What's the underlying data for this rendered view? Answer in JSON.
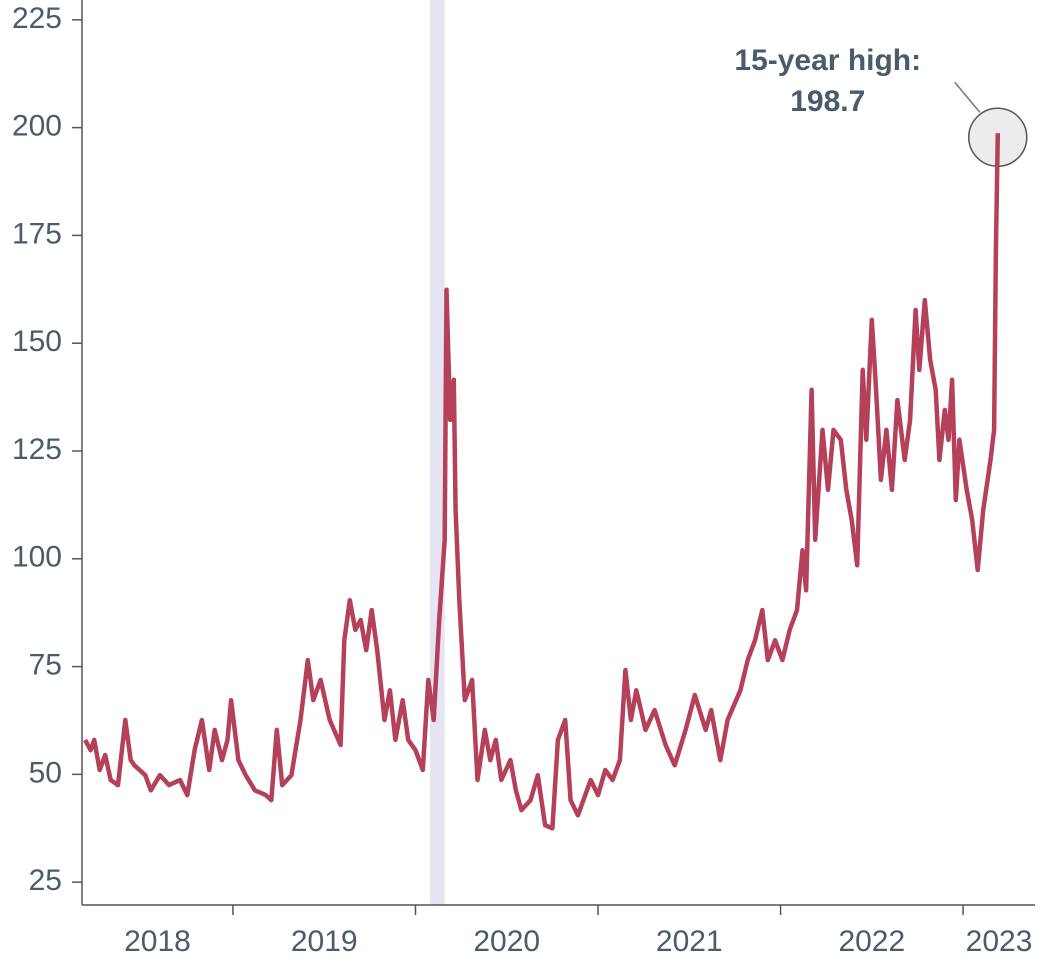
{
  "chart_data": {
    "type": "line",
    "annotation": {
      "label": "15-year high:",
      "value": 198.7,
      "x": 2023.19
    },
    "x": [
      2018.19,
      2018.22,
      2018.24,
      2018.27,
      2018.3,
      2018.33,
      2018.37,
      2018.41,
      2018.44,
      2018.46,
      2018.52,
      2018.55,
      2018.6,
      2018.65,
      2018.71,
      2018.75,
      2018.79,
      2018.83,
      2018.87,
      2018.9,
      2018.94,
      2018.97,
      2018.99,
      2019.03,
      2019.07,
      2019.12,
      2019.18,
      2019.21,
      2019.24,
      2019.27,
      2019.32,
      2019.37,
      2019.41,
      2019.44,
      2019.48,
      2019.53,
      2019.59,
      2019.61,
      2019.64,
      2019.67,
      2019.7,
      2019.73,
      2019.76,
      2019.79,
      2019.83,
      2019.86,
      2019.89,
      2019.93,
      2019.96,
      2020.0,
      2020.04,
      2020.07,
      2020.1,
      2020.13,
      2020.16,
      2020.17,
      2020.19,
      2020.21,
      2020.22,
      2020.24,
      2020.27,
      2020.31,
      2020.34,
      2020.38,
      2020.41,
      2020.44,
      2020.47,
      2020.52,
      2020.55,
      2020.58,
      2020.63,
      2020.67,
      2020.71,
      2020.75,
      2020.78,
      2020.82,
      2020.85,
      2020.89,
      2020.96,
      2021.0,
      2021.04,
      2021.08,
      2021.12,
      2021.15,
      2021.18,
      2021.21,
      2021.26,
      2021.31,
      2021.37,
      2021.42,
      2021.48,
      2021.53,
      2021.59,
      2021.62,
      2021.67,
      2021.71,
      2021.78,
      2021.82,
      2021.86,
      2021.9,
      2021.93,
      2021.97,
      2022.01,
      2022.05,
      2022.09,
      2022.12,
      2022.14,
      2022.17,
      2022.19,
      2022.23,
      2022.26,
      2022.29,
      2022.33,
      2022.36,
      2022.39,
      2022.42,
      2022.45,
      2022.47,
      2022.5,
      2022.52,
      2022.55,
      2022.58,
      2022.61,
      2022.64,
      2022.68,
      2022.71,
      2022.74,
      2022.76,
      2022.79,
      2022.82,
      2022.85,
      2022.87,
      2022.9,
      2022.92,
      2022.94,
      2022.96,
      2022.98,
      2023.02,
      2023.05,
      2023.08,
      2023.11,
      2023.15,
      2023.17,
      2023.18,
      2023.19
    ],
    "series": [
      {
        "color": "#b5405a",
        "values": [
          58,
          55.6,
          58,
          51,
          54.5,
          48.7,
          47.5,
          62.6,
          53.3,
          52.1,
          49.8,
          46.3,
          49.8,
          47.5,
          48.7,
          45.2,
          55.6,
          62.6,
          51,
          60.3,
          53.3,
          58,
          67.2,
          53.3,
          49.8,
          46.3,
          45.2,
          44,
          60.3,
          47.5,
          49.8,
          62.6,
          76.5,
          67.2,
          71.9,
          62.6,
          56.8,
          81.1,
          90.4,
          83.5,
          85.8,
          78.8,
          88.1,
          78.8,
          62.6,
          69.5,
          58,
          67.2,
          58,
          55.6,
          51,
          71.9,
          62.6,
          85.8,
          104.4,
          162.4,
          132.2,
          141.5,
          111.3,
          90.4,
          67.2,
          71.9,
          48.7,
          60.3,
          53.3,
          58,
          48.7,
          53.3,
          46.3,
          41.7,
          44,
          49.8,
          38.2,
          37.5,
          58,
          62.6,
          44,
          40.5,
          48.7,
          45.2,
          51,
          48.7,
          53.3,
          74.2,
          62.6,
          69.5,
          60.3,
          64.9,
          56.8,
          52.1,
          60.3,
          68.4,
          60.3,
          64.9,
          53.3,
          62.6,
          69.5,
          76.5,
          81.1,
          88.1,
          76.5,
          81.1,
          76.5,
          83.5,
          88.1,
          102,
          92.7,
          139.2,
          104.4,
          129.9,
          116,
          129.9,
          127.6,
          116,
          109,
          98.5,
          143.8,
          127.6,
          155.4,
          141.5,
          118.3,
          129.9,
          116,
          136.8,
          122.9,
          132.2,
          157.7,
          143.8,
          160,
          146.1,
          139.2,
          122.9,
          134.5,
          127.6,
          141.5,
          113.6,
          127.6,
          116,
          109,
          97.4,
          111.3,
          122.9,
          129.9,
          171.6,
          198.7
        ]
      }
    ],
    "shaded_x": [
      2020.08,
      2020.16
    ],
    "shaded_color": "#e4e4f2",
    "xlim": [
      2018.173,
      2023.394
    ],
    "xticks": [
      2019,
      2020,
      2021,
      2022,
      2023
    ],
    "year_labels": [
      "2018",
      "2019",
      "2020",
      "2021",
      "2022",
      "2023"
    ],
    "ylim": [
      19.7,
      229.6
    ],
    "yticks": [
      25,
      50,
      75,
      100,
      125,
      150,
      175,
      200,
      225
    ]
  }
}
